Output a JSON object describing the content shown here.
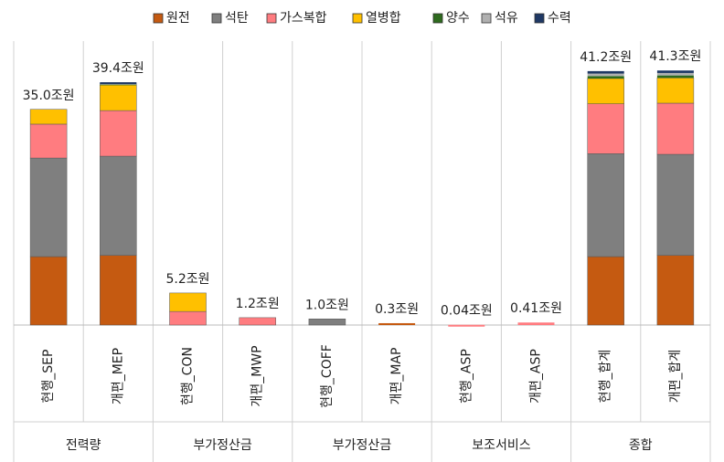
{
  "chart_data": {
    "type": "stacked_bar",
    "categories": [
      "현행_SEP",
      "개편_MEP",
      "현행_CON",
      "개편_MWP",
      "현행_COFF",
      "개편_MAP",
      "현행_ASP",
      "개편_ASP",
      "현행_합계",
      "개편_합계"
    ],
    "groups": [
      "전력량",
      "부가정산금",
      "부가정산금",
      "보조서비스",
      "종합"
    ],
    "series": [
      {
        "name": "원전",
        "color": "#c55a11",
        "values": [
          11.1,
          11.3,
          0,
          0,
          0,
          0.3,
          0,
          0,
          11.1,
          11.3
        ]
      },
      {
        "name": "석탄",
        "color": "#7f7f7f",
        "values": [
          16.0,
          16.1,
          0,
          0,
          1.0,
          0,
          0,
          0,
          16.7,
          16.4
        ]
      },
      {
        "name": "가스복합",
        "color": "#ff7c80",
        "values": [
          5.5,
          7.4,
          2.2,
          1.2,
          0,
          0,
          0.04,
          0.41,
          8.1,
          8.3
        ]
      },
      {
        "name": "열병합",
        "color": "#ffc000",
        "values": [
          2.4,
          4.3,
          3.0,
          0,
          0,
          0,
          0,
          0,
          4.1,
          4.1
        ]
      },
      {
        "name": "양수",
        "color": "#2e6b1e",
        "values": [
          0,
          0.1,
          0,
          0,
          0,
          0,
          0,
          0,
          0.4,
          0.4
        ]
      },
      {
        "name": "석유",
        "color": "#b0b0b0",
        "values": [
          0,
          0.1,
          0,
          0,
          0,
          0,
          0,
          0,
          0.4,
          0.4
        ]
      },
      {
        "name": "수력",
        "color": "#1f3864",
        "values": [
          0,
          0.1,
          0,
          0,
          0,
          0,
          0,
          0,
          0.4,
          0.4
        ]
      }
    ],
    "totals": [
      35.0,
      39.4,
      5.2,
      1.2,
      1.0,
      0.3,
      0.04,
      0.41,
      41.2,
      41.3
    ],
    "total_labels": [
      "35.0조원",
      "39.4조원",
      "5.2조원",
      "1.2조원",
      "1.0조원",
      "0.3조원",
      "0.04조원",
      "0.41조원",
      "41.2조원",
      "41.3조원"
    ]
  }
}
